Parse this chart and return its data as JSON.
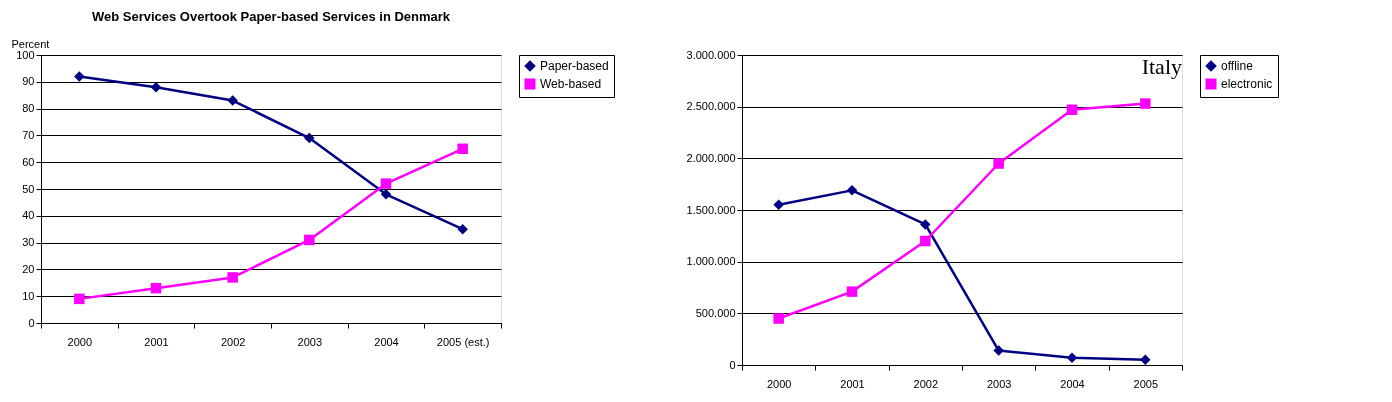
{
  "chart_data": [
    {
      "type": "line",
      "title": "Web Services Overtook Paper-based Services in Denmark",
      "ylabel": "Percent",
      "categories": [
        "2000",
        "2001",
        "2002",
        "2003",
        "2004",
        "2005 (est.)"
      ],
      "ylim": [
        0,
        100
      ],
      "yticks": [
        0,
        10,
        20,
        30,
        40,
        50,
        60,
        70,
        80,
        90,
        100
      ],
      "grid": "y",
      "legend": "right",
      "series": [
        {
          "name": "Paper-based",
          "color": "#000080",
          "marker": "diamond",
          "values": [
            92,
            88,
            83,
            69,
            48,
            35
          ]
        },
        {
          "name": "Web-based",
          "color": "#ff00ff",
          "marker": "square",
          "values": [
            9,
            13,
            17,
            31,
            52,
            65
          ]
        }
      ]
    },
    {
      "type": "line",
      "title": "Italy",
      "categories": [
        "2000",
        "2001",
        "2002",
        "2003",
        "2004",
        "2005"
      ],
      "ylim": [
        0,
        3000000
      ],
      "yticks": [
        0,
        {
          "value": 500000,
          "label": "500.000"
        },
        {
          "value": 1000000,
          "label": "1.000.000"
        },
        {
          "value": 1500000,
          "label": "1.500.000"
        },
        {
          "value": 2000000,
          "label": "2.000.000"
        },
        {
          "value": 2500000,
          "label": "2.500.000"
        },
        {
          "value": 3000000,
          "label": "3.000.000"
        }
      ],
      "grid": "y",
      "legend": "right",
      "series": [
        {
          "name": "offline",
          "color": "#000080",
          "marker": "diamond",
          "values": [
            1550000,
            1690000,
            1360000,
            140000,
            70000,
            50000
          ]
        },
        {
          "name": "electronic",
          "color": "#ff00ff",
          "marker": "square",
          "values": [
            450000,
            710000,
            1200000,
            1950000,
            2470000,
            2530000
          ]
        }
      ]
    }
  ]
}
